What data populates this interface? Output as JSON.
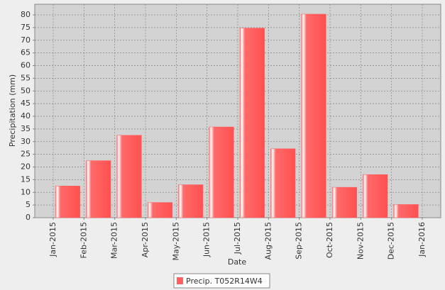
{
  "chart_data": {
    "type": "bar",
    "x_label": "Date",
    "y_label": "Precipitation (mm)",
    "x": [
      "2015-01",
      "2015-02",
      "2015-03",
      "2015-04",
      "2015-05",
      "2015-06",
      "2015-07",
      "2015-08",
      "2015-09",
      "2015-10",
      "2015-11",
      "2015-12"
    ],
    "series": [
      {
        "name": "Precip. T052R14W4",
        "color": "#ff5f5f",
        "values": [
          12.5,
          22.5,
          32.5,
          6,
          13,
          35.8,
          74.8,
          27.2,
          80.3,
          12,
          17,
          5.2
        ]
      }
    ],
    "xlim": [
      "2015-01",
      "2016-01"
    ],
    "xticks": [
      {
        "value": "2015-01",
        "label": "Jan-2015"
      },
      {
        "value": "2015-02",
        "label": "Feb-2015"
      },
      {
        "value": "2015-03",
        "label": "Mar-2015"
      },
      {
        "value": "2015-04",
        "label": "Apr-2015"
      },
      {
        "value": "2015-05",
        "label": "May-2015"
      },
      {
        "value": "2015-06",
        "label": "Jun-2015"
      },
      {
        "value": "2015-07",
        "label": "Jul-2015"
      },
      {
        "value": "2015-08",
        "label": "Aug-2015"
      },
      {
        "value": "2015-09",
        "label": "Sep-2015"
      },
      {
        "value": "2015-10",
        "label": "Oct-2015"
      },
      {
        "value": "2015-11",
        "label": "Nov-2015"
      },
      {
        "value": "2015-12",
        "label": "Dec-2015"
      },
      {
        "value": "2016-01",
        "label": "Jan-2016"
      }
    ],
    "ylim": [
      0,
      84.2
    ],
    "yticks": [
      0,
      5,
      10,
      15,
      20,
      25,
      30,
      35,
      40,
      45,
      50,
      55,
      60,
      65,
      70,
      75,
      80
    ],
    "grid": true
  }
}
